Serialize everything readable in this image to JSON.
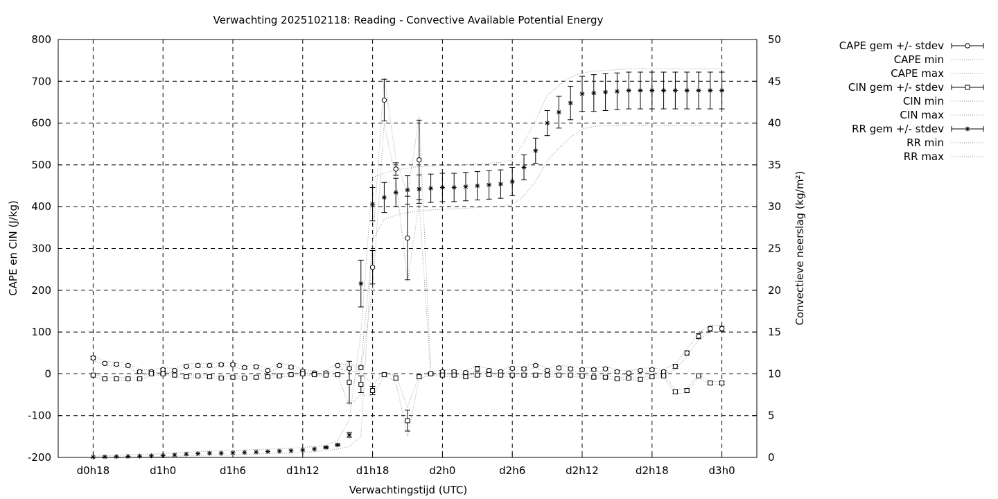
{
  "chart_data": {
    "type": "line",
    "title": "Verwachting 2025102118: Reading - Convective Available Potential Energy",
    "xlabel": "Verwachtingstijd (UTC)",
    "ylabel_left": "CAPE en CIN (J/kg)",
    "ylabel_right": "Convectieve neerslag (kg/m²)",
    "x_unit": "hours since d0h0",
    "xlim": [
      15,
      75
    ],
    "ylim_left": [
      -200,
      800
    ],
    "ylim_right": [
      0,
      50
    ],
    "grid": true,
    "legend_position": "outside-right",
    "x_ticks": [
      {
        "x": 18,
        "label": "d0h18"
      },
      {
        "x": 24,
        "label": "d1h0"
      },
      {
        "x": 30,
        "label": "d1h6"
      },
      {
        "x": 36,
        "label": "d1h12"
      },
      {
        "x": 42,
        "label": "d1h18"
      },
      {
        "x": 48,
        "label": "d2h0"
      },
      {
        "x": 54,
        "label": "d2h6"
      },
      {
        "x": 60,
        "label": "d2h12"
      },
      {
        "x": 66,
        "label": "d2h18"
      },
      {
        "x": 72,
        "label": "d3h0"
      }
    ],
    "y_ticks_left": [
      -200,
      -100,
      0,
      100,
      200,
      300,
      400,
      500,
      600,
      700,
      800
    ],
    "y_ticks_right": [
      0,
      5,
      10,
      15,
      20,
      25,
      30,
      35,
      40,
      45,
      50
    ],
    "x": [
      18,
      19,
      20,
      21,
      22,
      23,
      24,
      25,
      26,
      27,
      28,
      29,
      30,
      31,
      32,
      33,
      34,
      35,
      36,
      37,
      38,
      39,
      40,
      41,
      42,
      43,
      44,
      45,
      46,
      47,
      48,
      49,
      50,
      51,
      52,
      53,
      54,
      55,
      56,
      57,
      58,
      59,
      60,
      61,
      62,
      63,
      64,
      65,
      66,
      67,
      68,
      69,
      70,
      71,
      72
    ],
    "series": [
      {
        "name": "CAPE gem +/- stdev",
        "axis": "left",
        "marker": "circle",
        "mean": [
          38,
          25,
          23,
          20,
          5,
          5,
          10,
          8,
          18,
          20,
          20,
          22,
          22,
          15,
          17,
          8,
          20,
          16,
          6,
          2,
          2,
          20,
          13,
          15,
          255,
          655,
          490,
          325,
          512,
          0,
          5,
          5,
          3,
          12,
          8,
          5,
          13,
          12,
          20,
          8,
          14,
          12,
          10,
          10,
          12,
          5,
          2,
          8,
          10,
          5,
          18,
          50,
          90,
          108,
          108
        ],
        "stdev": [
          4,
          3,
          3,
          3,
          3,
          3,
          3,
          3,
          3,
          3,
          3,
          3,
          3,
          3,
          3,
          3,
          3,
          3,
          3,
          3,
          3,
          3,
          3,
          4,
          40,
          50,
          15,
          100,
          95,
          3,
          3,
          3,
          3,
          6,
          3,
          3,
          3,
          3,
          3,
          3,
          3,
          3,
          3,
          3,
          3,
          3,
          3,
          3,
          3,
          3,
          5,
          5,
          6,
          6,
          6
        ]
      },
      {
        "name": "CAPE min",
        "axis": "left",
        "style": "dotted",
        "values": [
          32,
          20,
          18,
          15,
          0,
          0,
          5,
          3,
          12,
          15,
          15,
          17,
          17,
          10,
          12,
          3,
          15,
          11,
          1,
          -3,
          -3,
          14,
          5,
          8,
          200,
          600,
          465,
          220,
          410,
          -5,
          0,
          0,
          -2,
          5,
          3,
          0,
          8,
          7,
          15,
          3,
          8,
          6,
          5,
          5,
          7,
          0,
          -3,
          3,
          5,
          0,
          10,
          42,
          82,
          100,
          100
        ]
      },
      {
        "name": "CAPE max",
        "axis": "left",
        "style": "dotted",
        "values": [
          44,
          30,
          28,
          25,
          10,
          10,
          15,
          13,
          24,
          25,
          25,
          27,
          27,
          20,
          22,
          13,
          25,
          21,
          11,
          7,
          7,
          26,
          20,
          22,
          310,
          710,
          515,
          430,
          615,
          5,
          10,
          10,
          8,
          18,
          13,
          10,
          18,
          17,
          25,
          13,
          20,
          18,
          15,
          15,
          17,
          10,
          7,
          13,
          15,
          10,
          25,
          58,
          98,
          116,
          116
        ]
      },
      {
        "name": "CIN gem +/- stdev",
        "axis": "left",
        "marker": "square",
        "mean": [
          -3,
          -12,
          -12,
          -12,
          -12,
          0,
          0,
          -3,
          -7,
          -5,
          -7,
          -10,
          -8,
          -10,
          -8,
          -7,
          -5,
          -2,
          0,
          -2,
          -3,
          -2,
          -20,
          -25,
          -40,
          -2,
          -10,
          -112,
          -7,
          0,
          -3,
          -3,
          -7,
          -3,
          -2,
          -3,
          -3,
          -3,
          -3,
          -3,
          -3,
          -3,
          -5,
          -8,
          -8,
          -12,
          -10,
          -13,
          -7,
          -5,
          -43,
          -40,
          -5,
          -22,
          -22
        ],
        "stdev": [
          2,
          2,
          2,
          2,
          2,
          2,
          2,
          2,
          2,
          2,
          2,
          2,
          2,
          2,
          2,
          2,
          2,
          2,
          2,
          2,
          2,
          2,
          50,
          20,
          10,
          3,
          5,
          25,
          3,
          2,
          2,
          2,
          2,
          2,
          2,
          2,
          2,
          2,
          2,
          2,
          2,
          2,
          2,
          2,
          2,
          2,
          2,
          2,
          2,
          2,
          4,
          4,
          2,
          3,
          3
        ]
      },
      {
        "name": "CIN min",
        "axis": "left",
        "style": "dotted",
        "values": [
          -6,
          -15,
          -15,
          -15,
          -15,
          -3,
          -3,
          -6,
          -10,
          -8,
          -10,
          -13,
          -11,
          -13,
          -11,
          -10,
          -8,
          -5,
          -3,
          -5,
          -6,
          -5,
          -75,
          -50,
          -55,
          -5,
          -18,
          -150,
          -11,
          -3,
          -6,
          -6,
          -10,
          -6,
          -5,
          -6,
          -6,
          -6,
          -6,
          -6,
          -6,
          -6,
          -8,
          -11,
          -11,
          -15,
          -13,
          -16,
          -10,
          -8,
          -48,
          -45,
          -8,
          -26,
          -26
        ]
      },
      {
        "name": "CIN max",
        "axis": "left",
        "style": "dotted",
        "values": [
          0,
          -9,
          -9,
          -9,
          -9,
          3,
          3,
          0,
          -4,
          -2,
          -4,
          -7,
          -5,
          -7,
          -5,
          -4,
          -2,
          1,
          3,
          1,
          0,
          1,
          30,
          0,
          -25,
          1,
          -3,
          -80,
          -3,
          3,
          0,
          0,
          -4,
          0,
          1,
          0,
          0,
          0,
          0,
          0,
          0,
          0,
          -2,
          -5,
          -5,
          -9,
          -7,
          -10,
          -4,
          -2,
          -38,
          -35,
          -2,
          -18,
          -18
        ]
      },
      {
        "name": "RR gem +/- stdev",
        "axis": "right",
        "marker": "star",
        "mean": [
          0.05,
          0.08,
          0.1,
          0.12,
          0.15,
          0.18,
          0.2,
          0.3,
          0.4,
          0.45,
          0.5,
          0.5,
          0.55,
          0.6,
          0.65,
          0.7,
          0.75,
          0.8,
          0.9,
          1.0,
          1.2,
          1.5,
          2.7,
          20.8,
          30.3,
          31.1,
          31.7,
          32.0,
          32.1,
          32.2,
          32.3,
          32.3,
          32.4,
          32.5,
          32.6,
          32.7,
          33.0,
          34.7,
          36.7,
          40.0,
          41.3,
          42.4,
          43.5,
          43.6,
          43.7,
          43.8,
          43.9,
          43.9,
          43.9,
          43.9,
          43.9,
          43.9,
          43.9,
          43.9,
          43.9
        ],
        "stdev": [
          0,
          0,
          0,
          0,
          0,
          0,
          0,
          0,
          0,
          0,
          0,
          0,
          0,
          0,
          0,
          0,
          0,
          0,
          0,
          0,
          0.1,
          0.1,
          0.3,
          2.8,
          2.0,
          1.8,
          1.7,
          1.7,
          1.7,
          1.7,
          1.7,
          1.7,
          1.7,
          1.7,
          1.7,
          1.7,
          1.7,
          1.5,
          1.5,
          1.5,
          1.9,
          2.0,
          2.1,
          2.2,
          2.2,
          2.2,
          2.2,
          2.2,
          2.2,
          2.2,
          2.2,
          2.2,
          2.2,
          2.2,
          2.2
        ]
      },
      {
        "name": "RR min",
        "axis": "right",
        "style": "dotted",
        "values": [
          0,
          0,
          0,
          0,
          0,
          0.05,
          0.1,
          0.15,
          0.2,
          0.25,
          0.3,
          0.3,
          0.3,
          0.35,
          0.4,
          0.45,
          0.5,
          0.5,
          0.6,
          0.7,
          0.8,
          1.0,
          1.3,
          2.5,
          26.0,
          28.5,
          29.0,
          29.3,
          29.5,
          29.6,
          29.7,
          29.7,
          29.8,
          29.9,
          30.0,
          30.0,
          30.2,
          31.3,
          33.0,
          35.5,
          37.0,
          38.3,
          39.3,
          39.6,
          39.7,
          39.7,
          39.7,
          39.7,
          39.7,
          39.7,
          39.7,
          39.7,
          39.7,
          39.7,
          39.7
        ]
      },
      {
        "name": "RR max",
        "axis": "right",
        "style": "dotted",
        "values": [
          0.15,
          0.2,
          0.25,
          0.3,
          0.35,
          0.4,
          0.45,
          0.55,
          0.65,
          0.7,
          0.75,
          0.8,
          0.85,
          0.9,
          0.95,
          1.0,
          1.05,
          1.1,
          1.2,
          1.3,
          1.5,
          2.0,
          4.5,
          15.0,
          33.5,
          34.0,
          34.4,
          34.6,
          34.8,
          34.8,
          34.9,
          34.9,
          35.0,
          35.1,
          35.2,
          35.3,
          35.6,
          37.7,
          40.3,
          43.3,
          44.5,
          45.5,
          46.0,
          46.2,
          46.3,
          46.4,
          46.5,
          46.5,
          46.5,
          46.5,
          46.5,
          46.5,
          46.5,
          46.5,
          46.5
        ]
      }
    ]
  }
}
